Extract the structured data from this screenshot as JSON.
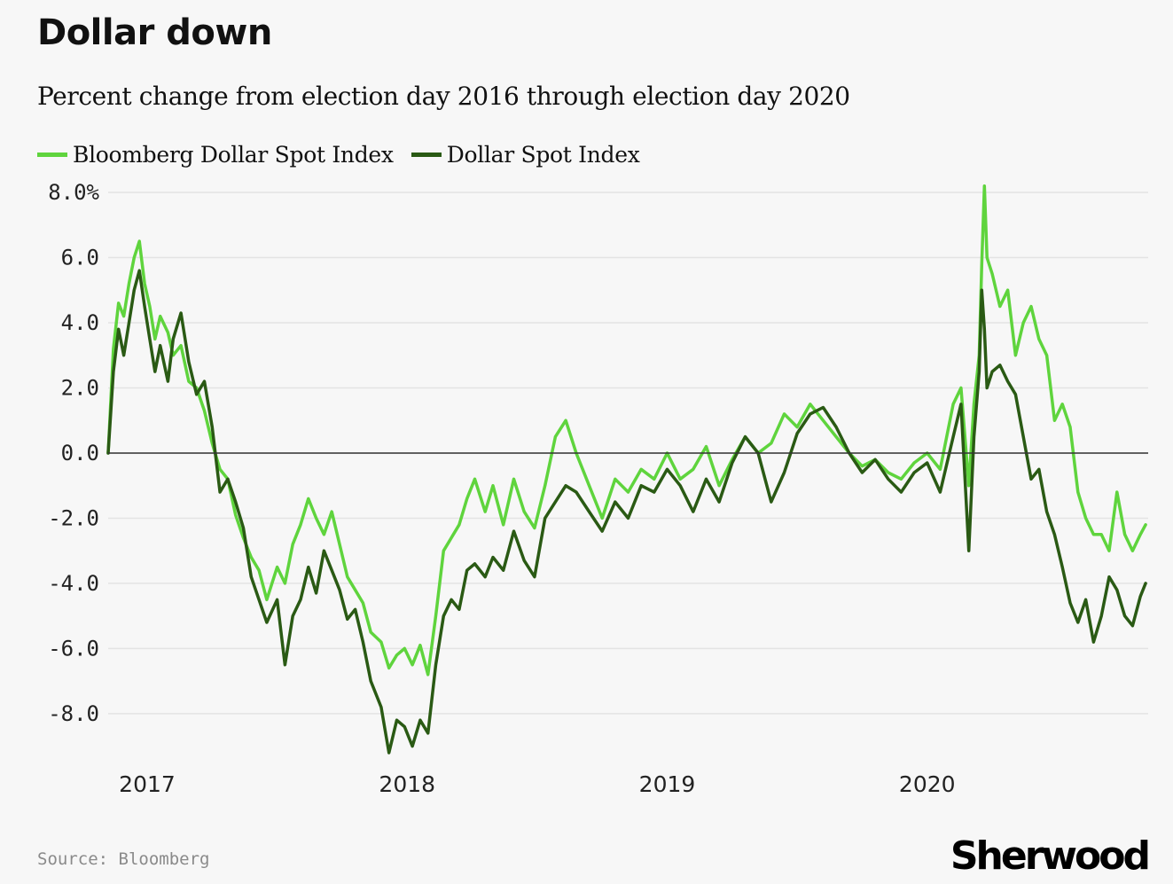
{
  "title": "Dollar down",
  "subtitle": "Percent change from election day 2016 through election day 2020",
  "legend": [
    {
      "label": "Bloomberg Dollar Spot Index",
      "color": "#5fd43d"
    },
    {
      "label": "Dollar Spot Index",
      "color": "#2a5a14"
    }
  ],
  "source": "Source: Bloomberg",
  "brand": "Sherwood",
  "chart_data": {
    "type": "line",
    "title": "Dollar down",
    "xlabel": "",
    "ylabel": "",
    "xlim": [
      2016.85,
      2020.85
    ],
    "ylim": [
      -9.5,
      8.3
    ],
    "y_ticks": [
      {
        "value": 8,
        "label": "8.0%"
      },
      {
        "value": 6,
        "label": "6.0"
      },
      {
        "value": 4,
        "label": "4.0"
      },
      {
        "value": 2,
        "label": "2.0"
      },
      {
        "value": 0,
        "label": "0.0"
      },
      {
        "value": -2,
        "label": "-2.0"
      },
      {
        "value": -4,
        "label": "-4.0"
      },
      {
        "value": -6,
        "label": "-6.0"
      },
      {
        "value": -8,
        "label": "-8.0"
      }
    ],
    "x_ticks": [
      {
        "value": 2017,
        "label": "2017"
      },
      {
        "value": 2018,
        "label": "2018"
      },
      {
        "value": 2019,
        "label": "2019"
      },
      {
        "value": 2020,
        "label": "2020"
      }
    ],
    "grid": true,
    "zero_line": true,
    "series": [
      {
        "name": "Bloomberg Dollar Spot Index",
        "color": "#5fd43d",
        "x": [
          2016.85,
          2016.87,
          2016.89,
          2016.91,
          2016.93,
          2016.95,
          2016.97,
          2016.99,
          2017.01,
          2017.03,
          2017.05,
          2017.08,
          2017.1,
          2017.13,
          2017.16,
          2017.19,
          2017.22,
          2017.25,
          2017.28,
          2017.31,
          2017.34,
          2017.37,
          2017.4,
          2017.43,
          2017.46,
          2017.5,
          2017.53,
          2017.56,
          2017.59,
          2017.62,
          2017.65,
          2017.68,
          2017.71,
          2017.74,
          2017.77,
          2017.8,
          2017.83,
          2017.86,
          2017.9,
          2017.93,
          2017.96,
          2017.99,
          2018.02,
          2018.05,
          2018.08,
          2018.11,
          2018.14,
          2018.17,
          2018.2,
          2018.23,
          2018.26,
          2018.3,
          2018.33,
          2018.37,
          2018.41,
          2018.45,
          2018.49,
          2018.53,
          2018.57,
          2018.61,
          2018.65,
          2018.7,
          2018.75,
          2018.8,
          2018.85,
          2018.9,
          2018.95,
          2019.0,
          2019.05,
          2019.1,
          2019.15,
          2019.2,
          2019.25,
          2019.3,
          2019.35,
          2019.4,
          2019.45,
          2019.5,
          2019.55,
          2019.6,
          2019.65,
          2019.7,
          2019.75,
          2019.8,
          2019.85,
          2019.9,
          2019.95,
          2020.0,
          2020.05,
          2020.1,
          2020.13,
          2020.16,
          2020.18,
          2020.2,
          2020.21,
          2020.22,
          2020.23,
          2020.25,
          2020.28,
          2020.31,
          2020.34,
          2020.37,
          2020.4,
          2020.43,
          2020.46,
          2020.49,
          2020.52,
          2020.55,
          2020.58,
          2020.61,
          2020.64,
          2020.67,
          2020.7,
          2020.73,
          2020.76,
          2020.79,
          2020.82,
          2020.84
        ],
        "y": [
          0.0,
          3.2,
          4.6,
          4.2,
          5.2,
          6.0,
          6.5,
          5.2,
          4.5,
          3.5,
          4.2,
          3.7,
          3.0,
          3.3,
          2.2,
          2.0,
          1.3,
          0.3,
          -0.5,
          -0.8,
          -1.9,
          -2.6,
          -3.2,
          -3.6,
          -4.5,
          -3.5,
          -4.0,
          -2.8,
          -2.2,
          -1.4,
          -2.0,
          -2.5,
          -1.8,
          -2.8,
          -3.8,
          -4.2,
          -4.6,
          -5.5,
          -5.8,
          -6.6,
          -6.2,
          -6.0,
          -6.5,
          -5.9,
          -6.8,
          -5.0,
          -3.0,
          -2.6,
          -2.2,
          -1.4,
          -0.8,
          -1.8,
          -1.0,
          -2.2,
          -0.8,
          -1.8,
          -2.3,
          -1.0,
          0.5,
          1.0,
          0.0,
          -1.0,
          -2.0,
          -0.8,
          -1.2,
          -0.5,
          -0.8,
          0.0,
          -0.8,
          -0.5,
          0.2,
          -1.0,
          -0.2,
          0.5,
          0.0,
          0.3,
          1.2,
          0.8,
          1.5,
          1.0,
          0.5,
          0.0,
          -0.4,
          -0.2,
          -0.6,
          -0.8,
          -0.3,
          0.0,
          -0.5,
          1.5,
          2.0,
          -1.0,
          1.5,
          3.0,
          5.8,
          8.2,
          6.0,
          5.5,
          4.5,
          5.0,
          3.0,
          4.0,
          4.5,
          3.5,
          3.0,
          1.0,
          1.5,
          0.8,
          -1.2,
          -2.0,
          -2.5,
          -2.5,
          -3.0,
          -1.2,
          -2.5,
          -3.0,
          -2.5,
          -2.2
        ]
      },
      {
        "name": "Dollar Spot Index",
        "color": "#2a5a14",
        "x": [
          2016.85,
          2016.87,
          2016.89,
          2016.91,
          2016.93,
          2016.95,
          2016.97,
          2016.99,
          2017.01,
          2017.03,
          2017.05,
          2017.08,
          2017.1,
          2017.13,
          2017.16,
          2017.19,
          2017.22,
          2017.25,
          2017.28,
          2017.31,
          2017.34,
          2017.37,
          2017.4,
          2017.43,
          2017.46,
          2017.5,
          2017.53,
          2017.56,
          2017.59,
          2017.62,
          2017.65,
          2017.68,
          2017.71,
          2017.74,
          2017.77,
          2017.8,
          2017.83,
          2017.86,
          2017.9,
          2017.93,
          2017.96,
          2017.99,
          2018.02,
          2018.05,
          2018.08,
          2018.11,
          2018.14,
          2018.17,
          2018.2,
          2018.23,
          2018.26,
          2018.3,
          2018.33,
          2018.37,
          2018.41,
          2018.45,
          2018.49,
          2018.53,
          2018.57,
          2018.61,
          2018.65,
          2018.7,
          2018.75,
          2018.8,
          2018.85,
          2018.9,
          2018.95,
          2019.0,
          2019.05,
          2019.1,
          2019.15,
          2019.2,
          2019.25,
          2019.3,
          2019.35,
          2019.4,
          2019.45,
          2019.5,
          2019.55,
          2019.6,
          2019.65,
          2019.7,
          2019.75,
          2019.8,
          2019.85,
          2019.9,
          2019.95,
          2020.0,
          2020.05,
          2020.1,
          2020.13,
          2020.16,
          2020.18,
          2020.2,
          2020.21,
          2020.22,
          2020.23,
          2020.25,
          2020.28,
          2020.31,
          2020.34,
          2020.37,
          2020.4,
          2020.43,
          2020.46,
          2020.49,
          2020.52,
          2020.55,
          2020.58,
          2020.61,
          2020.64,
          2020.67,
          2020.7,
          2020.73,
          2020.76,
          2020.79,
          2020.82,
          2020.84
        ],
        "y": [
          0.0,
          2.5,
          3.8,
          3.0,
          4.0,
          5.0,
          5.6,
          4.5,
          3.5,
          2.5,
          3.3,
          2.2,
          3.5,
          4.3,
          2.8,
          1.8,
          2.2,
          0.8,
          -1.2,
          -0.8,
          -1.5,
          -2.3,
          -3.8,
          -4.5,
          -5.2,
          -4.5,
          -6.5,
          -5.0,
          -4.5,
          -3.5,
          -4.3,
          -3.0,
          -3.6,
          -4.2,
          -5.1,
          -4.8,
          -5.8,
          -7.0,
          -7.8,
          -9.2,
          -8.2,
          -8.4,
          -9.0,
          -8.2,
          -8.6,
          -6.5,
          -5.0,
          -4.5,
          -4.8,
          -3.6,
          -3.4,
          -3.8,
          -3.2,
          -3.6,
          -2.4,
          -3.3,
          -3.8,
          -2.0,
          -1.5,
          -1.0,
          -1.2,
          -1.8,
          -2.4,
          -1.5,
          -2.0,
          -1.0,
          -1.2,
          -0.5,
          -1.0,
          -1.8,
          -0.8,
          -1.5,
          -0.3,
          0.5,
          0.0,
          -1.5,
          -0.6,
          0.6,
          1.2,
          1.4,
          0.8,
          0.0,
          -0.6,
          -0.2,
          -0.8,
          -1.2,
          -0.6,
          -0.3,
          -1.2,
          0.5,
          1.5,
          -3.0,
          0.5,
          2.5,
          5.0,
          3.8,
          2.0,
          2.5,
          2.7,
          2.2,
          1.8,
          0.5,
          -0.8,
          -0.5,
          -1.8,
          -2.5,
          -3.5,
          -4.6,
          -5.2,
          -4.5,
          -5.8,
          -5.0,
          -3.8,
          -4.2,
          -5.0,
          -5.3,
          -4.4,
          -4.0
        ]
      }
    ]
  }
}
